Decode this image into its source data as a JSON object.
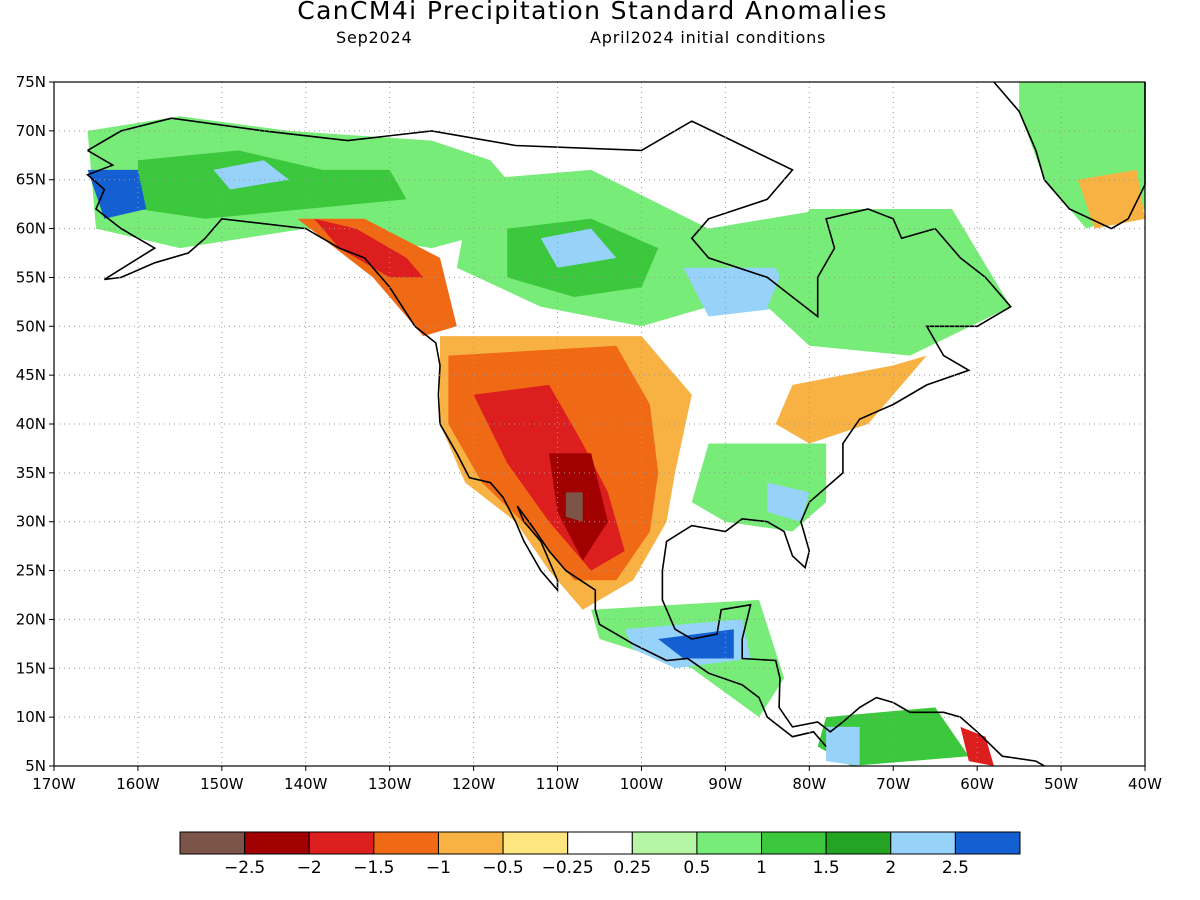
{
  "title": "CanCM4i Precipitation Standard Anomalies",
  "subtitle_left": "Sep2024",
  "subtitle_right": "April2024 initial conditions",
  "map": {
    "lon_range": [
      -170,
      -40
    ],
    "lat_range": [
      5,
      75
    ],
    "lat_labels": [
      "5N",
      "10N",
      "15N",
      "20N",
      "25N",
      "30N",
      "35N",
      "40N",
      "45N",
      "50N",
      "55N",
      "60N",
      "65N",
      "70N",
      "75N"
    ],
    "lon_labels": [
      "170W",
      "160W",
      "150W",
      "140W",
      "130W",
      "120W",
      "110W",
      "100W",
      "90W",
      "80W",
      "70W",
      "60W",
      "50W",
      "40W"
    ]
  },
  "colorbar": {
    "colors": [
      "#7d5548",
      "#a00000",
      "#dc1e1e",
      "#f06a16",
      "#f8b244",
      "#fde680",
      "#ffffff",
      "#b4f6a4",
      "#78ec78",
      "#3cc83c",
      "#23a523",
      "#96d2fa",
      "#1460d2"
    ],
    "labels": [
      "−2.5",
      "−2",
      "−1.5",
      "−1",
      "−0.5",
      "−0.25",
      "0.25",
      "0.5",
      "1",
      "1.5",
      "2",
      "2.5"
    ]
  },
  "anomaly_regions": [
    {
      "name": "alaska-wet",
      "color": "#78ec78",
      "lonlat": [
        [
          -166,
          70
        ],
        [
          -155,
          71.5
        ],
        [
          -142,
          70
        ],
        [
          -125,
          69
        ],
        [
          -118,
          67
        ],
        [
          -112,
          61
        ],
        [
          -125,
          58
        ],
        [
          -140,
          60
        ],
        [
          -155,
          58
        ],
        [
          -165,
          60
        ]
      ]
    },
    {
      "name": "alaska-wet-core",
      "color": "#3cc83c",
      "lonlat": [
        [
          -160,
          67
        ],
        [
          -148,
          68
        ],
        [
          -138,
          66
        ],
        [
          -130,
          66
        ],
        [
          -128,
          63
        ],
        [
          -140,
          62
        ],
        [
          -152,
          61
        ],
        [
          -160,
          62
        ]
      ]
    },
    {
      "name": "alaska-core-blue",
      "color": "#96d2fa",
      "lonlat": [
        [
          -151,
          66
        ],
        [
          -145,
          67
        ],
        [
          -142,
          65
        ],
        [
          -149,
          64
        ]
      ]
    },
    {
      "name": "alaska-west-blue",
      "color": "#1460d2",
      "lonlat": [
        [
          -166,
          66
        ],
        [
          -160,
          66
        ],
        [
          -159,
          62
        ],
        [
          -164,
          61
        ]
      ]
    },
    {
      "name": "gulf-alaska-dry",
      "color": "#f06a16",
      "lonlat": [
        [
          -141,
          61
        ],
        [
          -133,
          61
        ],
        [
          -124,
          57
        ],
        [
          -122,
          50
        ],
        [
          -126,
          49
        ],
        [
          -132,
          55
        ]
      ]
    },
    {
      "name": "gulf-alaska-dry-core",
      "color": "#dc1e1e",
      "lonlat": [
        [
          -139,
          61
        ],
        [
          -134,
          60
        ],
        [
          -128,
          57
        ],
        [
          -126,
          55
        ],
        [
          -130,
          55
        ],
        [
          -136,
          58
        ]
      ]
    },
    {
      "name": "canada-central-wet",
      "color": "#78ec78",
      "lonlat": [
        [
          -120,
          65
        ],
        [
          -106,
          66
        ],
        [
          -92,
          60
        ],
        [
          -78,
          62
        ],
        [
          -75,
          55
        ],
        [
          -92,
          52
        ],
        [
          -100,
          50
        ],
        [
          -112,
          52
        ],
        [
          -122,
          56
        ]
      ]
    },
    {
      "name": "canada-central-wet-core",
      "color": "#3cc83c",
      "lonlat": [
        [
          -116,
          60
        ],
        [
          -106,
          61
        ],
        [
          -98,
          58
        ],
        [
          -100,
          54
        ],
        [
          -108,
          53
        ],
        [
          -116,
          55
        ]
      ]
    },
    {
      "name": "canada-central-blue",
      "color": "#96d2fa",
      "lonlat": [
        [
          -112,
          59
        ],
        [
          -106,
          60
        ],
        [
          -103,
          57
        ],
        [
          -110,
          56
        ]
      ]
    },
    {
      "name": "hudson-blue",
      "color": "#96d2fa",
      "lonlat": [
        [
          -95,
          56
        ],
        [
          -84,
          56
        ],
        [
          -82,
          52
        ],
        [
          -92,
          51
        ]
      ]
    },
    {
      "name": "quebec-wet",
      "color": "#78ec78",
      "lonlat": [
        [
          -80,
          62
        ],
        [
          -63,
          62
        ],
        [
          -56,
          52
        ],
        [
          -68,
          47
        ],
        [
          -80,
          48
        ],
        [
          -85,
          52
        ]
      ]
    },
    {
      "name": "greenland-wet",
      "color": "#78ec78",
      "lonlat": [
        [
          -55,
          75
        ],
        [
          -40,
          75
        ],
        [
          -40,
          62
        ],
        [
          -47,
          60
        ],
        [
          -52,
          65
        ],
        [
          -55,
          72
        ]
      ]
    },
    {
      "name": "greenland-dry",
      "color": "#f8b244",
      "lonlat": [
        [
          -48,
          65
        ],
        [
          -41,
          66
        ],
        [
          -40,
          61
        ],
        [
          -46,
          60
        ]
      ]
    },
    {
      "name": "west-us-dry",
      "color": "#f8b244",
      "lonlat": [
        [
          -124,
          49
        ],
        [
          -100,
          49
        ],
        [
          -94,
          43
        ],
        [
          -96,
          35
        ],
        [
          -97,
          30
        ],
        [
          -101,
          24
        ],
        [
          -107,
          21
        ],
        [
          -111,
          25
        ],
        [
          -115,
          30
        ],
        [
          -121,
          34
        ],
        [
          -124,
          40
        ]
      ]
    },
    {
      "name": "west-us-dry-mid",
      "color": "#f06a16",
      "lonlat": [
        [
          -123,
          47
        ],
        [
          -103,
          48
        ],
        [
          -99,
          42
        ],
        [
          -98,
          35
        ],
        [
          -99,
          29
        ],
        [
          -103,
          24
        ],
        [
          -108,
          24
        ],
        [
          -113,
          29
        ],
        [
          -119,
          34
        ],
        [
          -123,
          40
        ]
      ]
    },
    {
      "name": "west-us-dry-core",
      "color": "#dc1e1e",
      "lonlat": [
        [
          -120,
          43
        ],
        [
          -111,
          44
        ],
        [
          -107,
          38
        ],
        [
          -104,
          33
        ],
        [
          -102,
          27
        ],
        [
          -106,
          25
        ],
        [
          -111,
          30
        ],
        [
          -116,
          36
        ]
      ]
    },
    {
      "name": "sw-deep-dry",
      "color": "#a00000",
      "lonlat": [
        [
          -111,
          37
        ],
        [
          -106,
          37
        ],
        [
          -104,
          30
        ],
        [
          -107,
          26
        ],
        [
          -110,
          31
        ]
      ]
    },
    {
      "name": "sw-extreme",
      "color": "#7d5548",
      "lonlat": [
        [
          -109,
          33
        ],
        [
          -107,
          33
        ],
        [
          -107,
          30
        ],
        [
          -109,
          30.5
        ]
      ]
    },
    {
      "name": "southeast-wet",
      "color": "#78ec78",
      "lonlat": [
        [
          -92,
          38
        ],
        [
          -78,
          38
        ],
        [
          -78,
          32
        ],
        [
          -82,
          29
        ],
        [
          -90,
          30
        ],
        [
          -94,
          32
        ]
      ]
    },
    {
      "name": "southeast-blue",
      "color": "#96d2fa",
      "lonlat": [
        [
          -85,
          34
        ],
        [
          -80,
          33
        ],
        [
          -81,
          30
        ],
        [
          -85,
          31
        ]
      ]
    },
    {
      "name": "northeast-dry",
      "color": "#f8b244",
      "lonlat": [
        [
          -82,
          44
        ],
        [
          -70,
          46
        ],
        [
          -66,
          47
        ],
        [
          -73,
          40
        ],
        [
          -80,
          38
        ],
        [
          -84,
          40
        ]
      ]
    },
    {
      "name": "central-america-wet",
      "color": "#78ec78",
      "lonlat": [
        [
          -106,
          21
        ],
        [
          -86,
          22
        ],
        [
          -83,
          14
        ],
        [
          -86,
          10
        ],
        [
          -94,
          15
        ],
        [
          -105,
          18
        ]
      ]
    },
    {
      "name": "central-america-blue",
      "color": "#96d2fa",
      "lonlat": [
        [
          -102,
          19
        ],
        [
          -88,
          20
        ],
        [
          -87,
          16
        ],
        [
          -96,
          15
        ],
        [
          -101,
          17
        ]
      ]
    },
    {
      "name": "central-america-dblue",
      "color": "#1460d2",
      "lonlat": [
        [
          -98,
          18
        ],
        [
          -89,
          19
        ],
        [
          -89,
          16
        ],
        [
          -95,
          16
        ]
      ]
    },
    {
      "name": "south-america-wet",
      "color": "#3cc83c",
      "lonlat": [
        [
          -78,
          10
        ],
        [
          -65,
          11
        ],
        [
          -61,
          6
        ],
        [
          -75,
          5
        ],
        [
          -79,
          7
        ]
      ]
    },
    {
      "name": "south-america-blue",
      "color": "#96d2fa",
      "lonlat": [
        [
          -78,
          9
        ],
        [
          -74,
          9
        ],
        [
          -74,
          5
        ],
        [
          -78,
          5.5
        ]
      ]
    },
    {
      "name": "venezuela-dry",
      "color": "#dc1e1e",
      "lonlat": [
        [
          -62,
          9
        ],
        [
          -59,
          8
        ],
        [
          -58,
          5
        ],
        [
          -61,
          5.5
        ]
      ]
    }
  ],
  "coastlines": [
    {
      "name": "north-america-coast",
      "lonlat": [
        [
          -166,
          68
        ],
        [
          -162,
          70
        ],
        [
          -156,
          71.3
        ],
        [
          -145,
          70
        ],
        [
          -135,
          69
        ],
        [
          -125,
          70
        ],
        [
          -115,
          68.5
        ],
        [
          -100,
          68
        ],
        [
          -94,
          71
        ],
        [
          -88,
          68.5
        ],
        [
          -82,
          66
        ],
        [
          -85,
          63
        ],
        [
          -92,
          61
        ],
        [
          -94,
          59
        ],
        [
          -92,
          57
        ],
        [
          -85,
          55
        ],
        [
          -82,
          53
        ],
        [
          -79,
          51
        ],
        [
          -79,
          55
        ],
        [
          -77,
          58
        ],
        [
          -78,
          61
        ],
        [
          -73,
          62
        ],
        [
          -70,
          61
        ],
        [
          -69,
          59
        ],
        [
          -65,
          60
        ],
        [
          -62,
          57
        ],
        [
          -59,
          55
        ],
        [
          -56,
          52
        ],
        [
          -60,
          50
        ],
        [
          -66,
          50
        ],
        [
          -64,
          47
        ],
        [
          -61,
          45.5
        ],
        [
          -66,
          44
        ],
        [
          -70,
          42
        ],
        [
          -74,
          40.5
        ],
        [
          -76,
          38
        ],
        [
          -76,
          35
        ],
        [
          -78,
          33.5
        ],
        [
          -80,
          32
        ],
        [
          -81,
          30
        ],
        [
          -80,
          27
        ],
        [
          -80.5,
          25.3
        ],
        [
          -82,
          26.5
        ],
        [
          -83,
          29
        ],
        [
          -85,
          30
        ],
        [
          -88,
          30.3
        ],
        [
          -90,
          29
        ],
        [
          -94,
          29.6
        ],
        [
          -97,
          28
        ],
        [
          -97.5,
          25
        ],
        [
          -97.5,
          22
        ],
        [
          -96,
          19
        ],
        [
          -94,
          18
        ],
        [
          -91,
          18.5
        ],
        [
          -90.5,
          21
        ],
        [
          -87,
          21.5
        ],
        [
          -88,
          18
        ],
        [
          -88,
          16
        ],
        [
          -84,
          15.8
        ],
        [
          -83.5,
          14
        ],
        [
          -83.6,
          11
        ],
        [
          -82,
          9
        ],
        [
          -79,
          9.5
        ],
        [
          -77.5,
          8.5
        ],
        [
          -76,
          9.5
        ],
        [
          -74,
          11
        ],
        [
          -72,
          12
        ],
        [
          -70,
          11.5
        ],
        [
          -68,
          10.5
        ],
        [
          -64,
          10.5
        ],
        [
          -62,
          10
        ],
        [
          -60,
          8.5
        ],
        [
          -57,
          6
        ],
        [
          -53,
          5.5
        ],
        [
          -52,
          5
        ]
      ]
    },
    {
      "name": "pacific-coast",
      "lonlat": [
        [
          -78,
          7
        ],
        [
          -79.5,
          8.5
        ],
        [
          -82,
          8
        ],
        [
          -85,
          10
        ],
        [
          -86,
          12
        ],
        [
          -88,
          13.3
        ],
        [
          -92,
          14.5
        ],
        [
          -94.5,
          16
        ],
        [
          -97,
          15.8
        ],
        [
          -101,
          17.5
        ],
        [
          -105,
          19.5
        ],
        [
          -105.5,
          21
        ],
        [
          -105.5,
          23
        ],
        [
          -109,
          25
        ],
        [
          -111,
          27
        ],
        [
          -113,
          29.5
        ],
        [
          -114.8,
          31.6
        ],
        [
          -114,
          30
        ],
        [
          -112,
          28
        ],
        [
          -110,
          24
        ],
        [
          -110,
          23
        ],
        [
          -112,
          25
        ],
        [
          -114,
          28
        ],
        [
          -115,
          30
        ],
        [
          -116.5,
          32.5
        ],
        [
          -118,
          34
        ],
        [
          -120.5,
          34.5
        ],
        [
          -122,
          37
        ],
        [
          -124,
          40
        ],
        [
          -124.2,
          43
        ],
        [
          -124,
          46
        ],
        [
          -124.5,
          48.3
        ],
        [
          -127,
          50
        ],
        [
          -130,
          54
        ],
        [
          -133,
          57
        ],
        [
          -136,
          58
        ],
        [
          -140,
          60
        ],
        [
          -145,
          60.5
        ],
        [
          -150,
          61
        ],
        [
          -152,
          59
        ],
        [
          -154,
          57.5
        ],
        [
          -158,
          56.5
        ],
        [
          -162,
          55
        ],
        [
          -164,
          54.8
        ],
        [
          -158,
          58
        ],
        [
          -162,
          60
        ],
        [
          -165,
          62
        ],
        [
          -164,
          64
        ],
        [
          -166,
          65.5
        ],
        [
          -163,
          66.5
        ],
        [
          -166,
          68
        ]
      ]
    },
    {
      "name": "greenland-coast",
      "lonlat": [
        [
          -58,
          76
        ],
        [
          -55,
          72
        ],
        [
          -53,
          68
        ],
        [
          -52,
          65
        ],
        [
          -49,
          62
        ],
        [
          -44,
          60
        ],
        [
          -42,
          61
        ],
        [
          -40,
          64.5
        ],
        [
          -40,
          75
        ]
      ]
    }
  ]
}
